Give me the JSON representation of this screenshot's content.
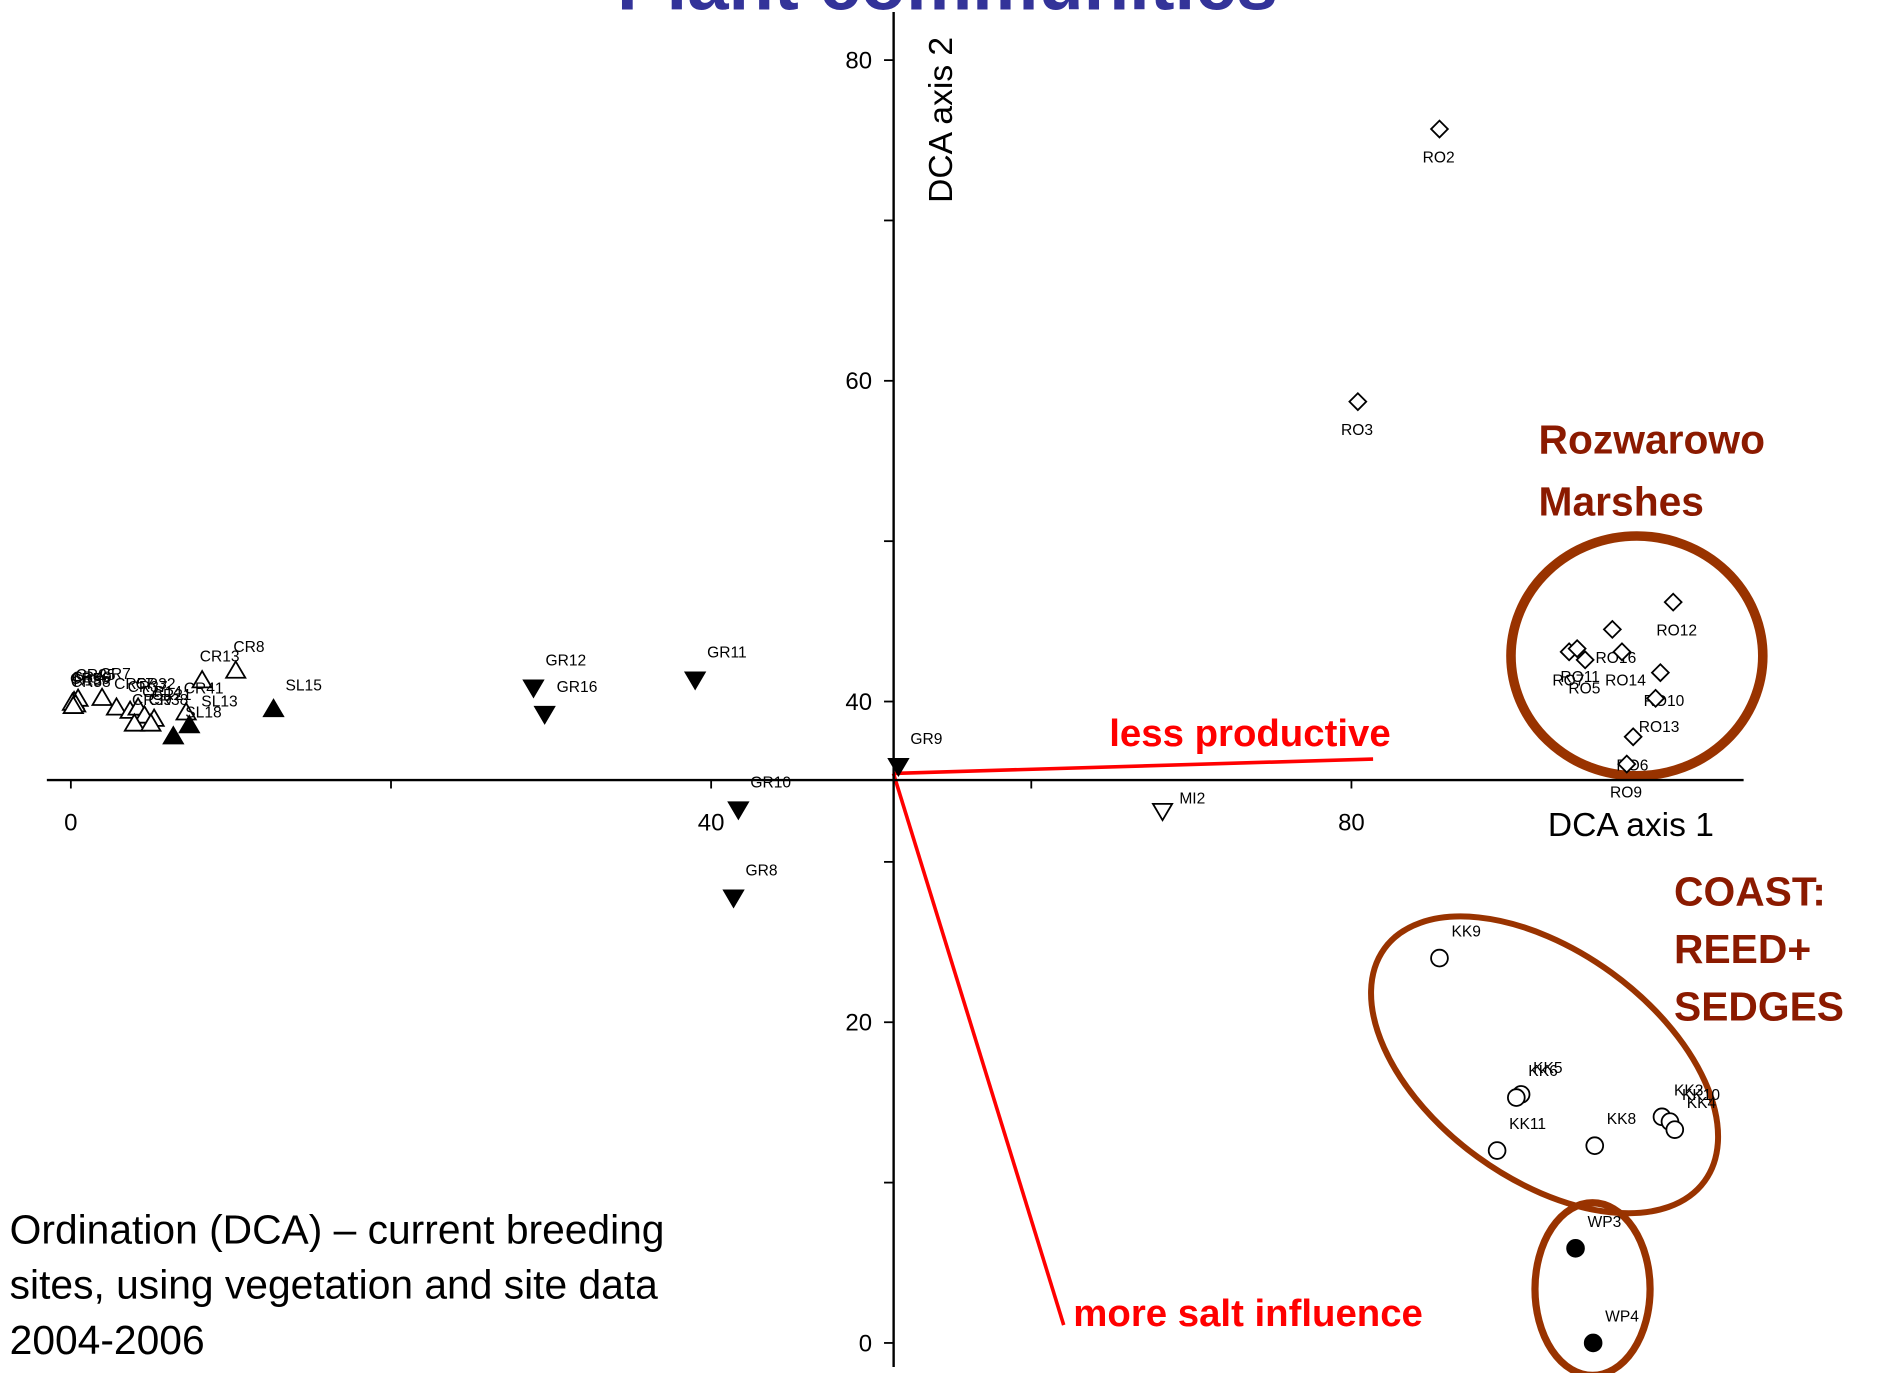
{
  "chart_data": {
    "type": "scatter",
    "title": "Plant communities",
    "x_label": "DCA axis 1",
    "y_label": "DCA axis 2",
    "xlim": [
      -1.5,
      104.5
    ],
    "ylim": [
      -1.5,
      83
    ],
    "xticks": [
      0,
      40,
      80
    ],
    "yticks": [
      0,
      20,
      40,
      60,
      80
    ],
    "x_minor_ticks": [
      20,
      60
    ],
    "y_minor_ticks": [
      10,
      30,
      50,
      70
    ],
    "x_axis_crosses_y_at": 35.1,
    "y_axis_crosses_x_at": 51.4,
    "color": "#000000",
    "series": [
      {
        "marker": "triangle-up",
        "filled": false,
        "labels": [
          "CR40",
          "CR25",
          "CR56",
          "R15",
          "CR58",
          "CR7",
          "CR57",
          "CR37",
          "CR32",
          "CR13",
          "CR8",
          "CR14",
          "CR41",
          "CR21",
          "CR39",
          "CR38"
        ],
        "x": [
          0.2,
          0.45,
          0.1,
          0.3,
          0.15,
          1.95,
          2.85,
          3.7,
          4.2,
          8.2,
          10.3,
          4.6,
          7.2,
          5.2,
          3.97,
          5.0
        ],
        "y": [
          40.0,
          40.15,
          39.9,
          39.8,
          39.7,
          40.2,
          39.6,
          39.4,
          39.6,
          41.3,
          41.9,
          39.1,
          39.3,
          38.9,
          38.6,
          38.6
        ]
      },
      {
        "marker": "triangle-up",
        "filled": true,
        "labels": [
          "SL15",
          "SL13",
          "SL18"
        ],
        "x": [
          12.66,
          7.4,
          6.4
        ],
        "y": [
          39.5,
          38.5,
          37.8
        ]
      },
      {
        "marker": "triangle-down",
        "filled": true,
        "labels": [
          "GR12",
          "GR16",
          "GR11",
          "GR9",
          "GR10",
          "GR8"
        ],
        "x": [
          28.9,
          29.6,
          39.0,
          51.7,
          41.7,
          41.4
        ],
        "y": [
          40.9,
          39.25,
          41.4,
          36.0,
          33.3,
          27.8
        ]
      },
      {
        "marker": "triangle-down",
        "filled": false,
        "labels": [
          "MI2"
        ],
        "x": [
          68.2
        ],
        "y": [
          33.2
        ]
      },
      {
        "marker": "diamond",
        "filled": false,
        "labels": [
          "RO2",
          "RO3",
          "RO12",
          "RO16",
          "RO7",
          "RO11",
          "RO5",
          "RO14",
          "RO10",
          "RO13",
          "RO6",
          "RO9"
        ],
        "x": [
          85.5,
          80.4,
          100.1,
          96.3,
          93.6,
          94.1,
          94.6,
          96.9,
          99.3,
          99.0,
          97.6,
          97.2
        ],
        "y": [
          75.7,
          58.7,
          46.2,
          44.5,
          43.1,
          43.3,
          42.6,
          43.1,
          41.8,
          40.2,
          37.8,
          36.1
        ]
      },
      {
        "marker": "circle",
        "filled": false,
        "labels": [
          "KK9",
          "KK5",
          "KK6",
          "KK3",
          "KK10",
          "KK4",
          "KK8",
          "KK11"
        ],
        "x": [
          85.5,
          90.6,
          90.3,
          99.4,
          99.9,
          100.2,
          95.2,
          89.1
        ],
        "y": [
          24.0,
          15.5,
          15.3,
          14.1,
          13.8,
          13.3,
          12.3,
          12.0
        ]
      },
      {
        "marker": "circle",
        "filled": true,
        "labels": [
          "WP3",
          "WP4"
        ],
        "x": [
          94.0,
          95.1
        ],
        "y": [
          5.9,
          0.0
        ]
      }
    ],
    "annotations": {
      "rozwarowo": [
        "Rozwarowo",
        "Marshes"
      ],
      "coast": [
        "COAST:",
        "REED+",
        "SEDGES"
      ],
      "less_productive": "less productive",
      "more_salt": "more salt influence",
      "caption": [
        "Ordination (DCA) – current breeding",
        "sites, using vegetation and site data",
        "2004-2006"
      ]
    }
  }
}
